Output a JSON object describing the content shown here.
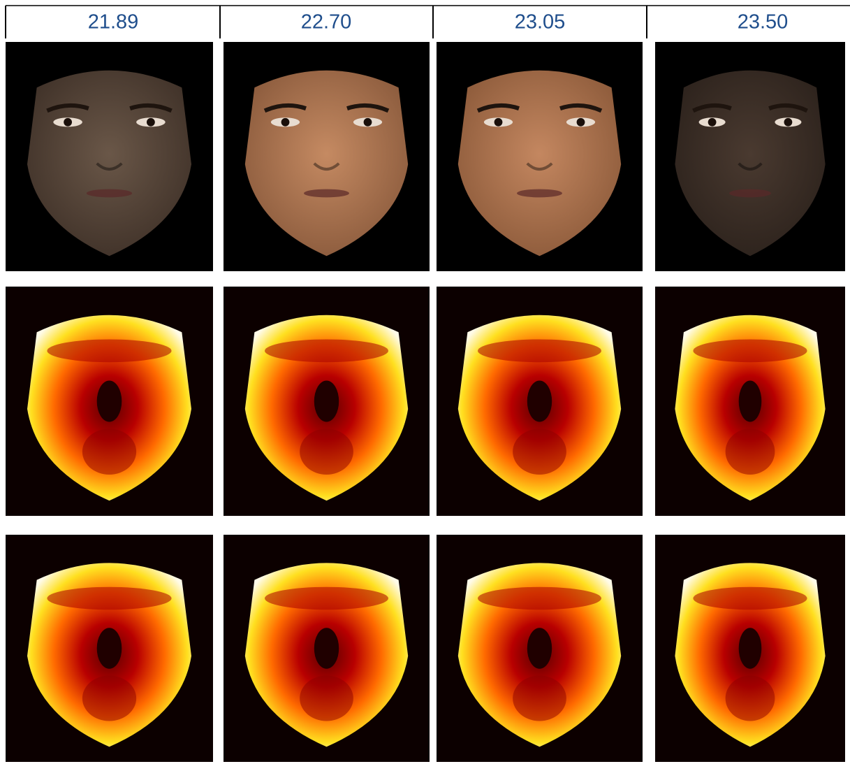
{
  "header": {
    "labels": [
      "21.89",
      "22.70",
      "23.05",
      "23.50"
    ]
  }
}
